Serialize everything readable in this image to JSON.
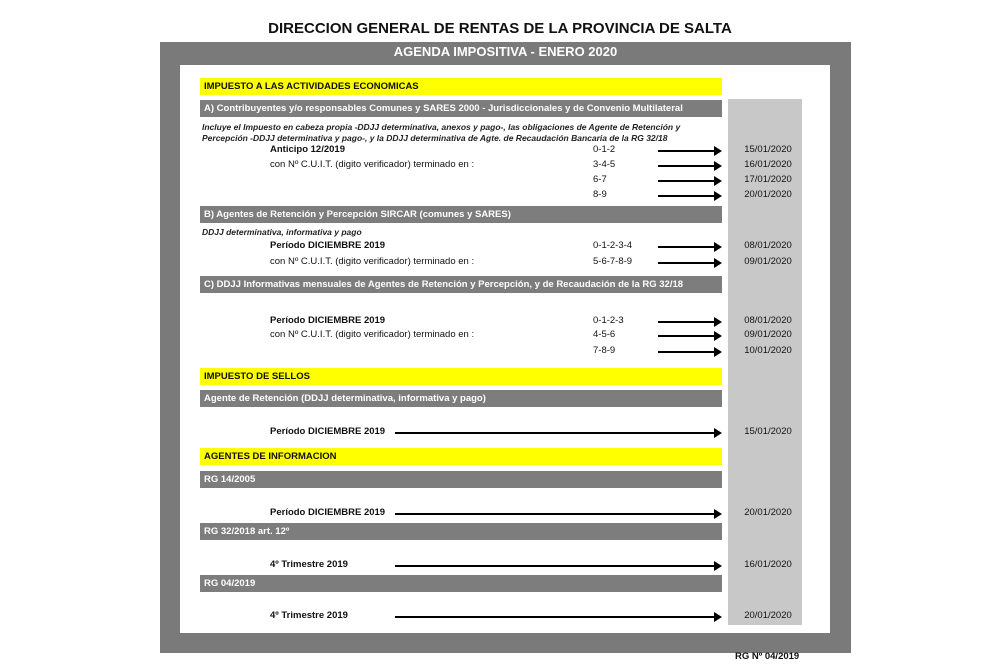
{
  "title": "DIRECCION GENERAL DE RENTAS DE LA PROVINCIA DE SALTA",
  "subtitle": "AGENDA IMPOSITIVA  - ENERO 2020",
  "footer": "RG Nº 04/2019",
  "colors": {
    "frame": "#7a7a7a",
    "yellow": "#ffff00",
    "section_bar": "#7d7d7d",
    "date_column": "#c8c8c8"
  },
  "items": [
    {
      "type": "yel",
      "text": "IMPUESTO A LAS ACTIVIDADES ECONOMICAS"
    },
    {
      "type": "gry",
      "text": "A) Contribuyentes y/o responsables Comunes y SARES 2000 - Jurisdiccionales y de Convenio Multilateral"
    },
    {
      "type": "ita",
      "text": "Incluye el Impuesto en cabeza propia -DDJJ determinativa, anexos y pago-, las obligaciones de Agente de Retención y"
    },
    {
      "type": "ita",
      "text": "Percepción -DDJJ determinativa y pago-, y la DDJJ determinativa de Agte. de Recaudación Bancaria de la RG 32/18"
    },
    {
      "type": "row",
      "label": "Anticipo 12/2019",
      "bold": true,
      "digits": "0-1-2",
      "date": "15/01/2020"
    },
    {
      "type": "row",
      "label": "con Nº C.U.I.T.  (digito verificador) terminado en :",
      "digits": "3-4-5",
      "date": "16/01/2020"
    },
    {
      "type": "row",
      "label": "",
      "digits": "6-7",
      "date": "17/01/2020"
    },
    {
      "type": "row",
      "label": "",
      "digits": "8-9",
      "date": "20/01/2020"
    },
    {
      "type": "gry",
      "text": "B) Agentes de Retención y Percepción SIRCAR (comunes y SARES)"
    },
    {
      "type": "ita",
      "text": "DDJJ determinativa, informativa y pago"
    },
    {
      "type": "row",
      "label": "Período DICIEMBRE 2019",
      "bold": true,
      "digits": "0-1-2-3-4",
      "date": "08/01/2020"
    },
    {
      "type": "row",
      "label": "con Nº C.U.I.T.  (digito verificador) terminado en :",
      "digits": "5-6-7-8-9",
      "date": "09/01/2020"
    },
    {
      "type": "gry",
      "text": "C) DDJJ Informativas mensuales de Agentes de Retención y Percepción, y de Recaudación de la RG 32/18"
    },
    {
      "type": "row",
      "label": "Período DICIEMBRE 2019",
      "bold": true,
      "digits": "0-1-2-3",
      "date": "08/01/2020"
    },
    {
      "type": "row",
      "label": "con Nº C.U.I.T.  (digito verificador) terminado en :",
      "digits": "4-5-6",
      "date": "09/01/2020"
    },
    {
      "type": "row",
      "label": "",
      "digits": "7-8-9",
      "date": "10/01/2020"
    },
    {
      "type": "yel",
      "text": "IMPUESTO DE SELLOS"
    },
    {
      "type": "gry",
      "text": "Agente de Retención (DDJJ determinativa, informativa y pago)"
    },
    {
      "type": "row",
      "label": "Período DICIEMBRE 2019",
      "bold": true,
      "digits": "",
      "date": "15/01/2020"
    },
    {
      "type": "yel",
      "text": "AGENTES DE INFORMACION"
    },
    {
      "type": "gry",
      "text": "RG 14/2005"
    },
    {
      "type": "row",
      "label": "Período DICIEMBRE 2019",
      "bold": true,
      "digits": "",
      "date": "20/01/2020"
    },
    {
      "type": "gry",
      "text": "RG 32/2018 art. 12º"
    },
    {
      "type": "row",
      "label": "4º Trimestre 2019",
      "bold": true,
      "digits": "",
      "date": "16/01/2020"
    },
    {
      "type": "gry",
      "text": "RG 04/2019"
    },
    {
      "type": "row",
      "label": "4º Trimestre 2019",
      "bold": true,
      "digits": "",
      "date": "20/01/2020"
    }
  ]
}
